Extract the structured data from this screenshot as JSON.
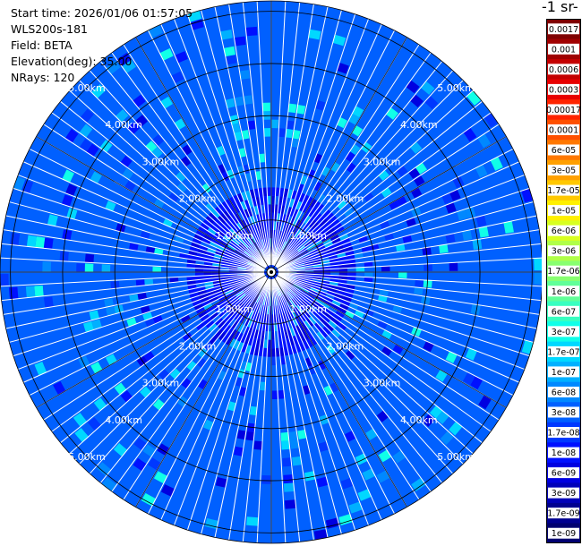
{
  "info": {
    "start_time": "Start time: 2026/01/06 01:57:05",
    "instrument": "WLS200s-181",
    "field": "Field: BETA",
    "elevation": "Elevation(deg): 35.00",
    "nrays": "NRays: 120"
  },
  "colorbar": {
    "title": "-1 sr-",
    "labels": [
      "0.0017",
      "0.001",
      "0.0006",
      "0.0003",
      "0.00017",
      "0.0001",
      "6e-05",
      "3e-05",
      "1.7e-05",
      "1e-05",
      "6e-06",
      "3e-06",
      "1.7e-06",
      "1e-06",
      "6e-07",
      "3e-07",
      "1.7e-07",
      "1e-07",
      "6e-08",
      "3e-08",
      "1.7e-08",
      "1e-08",
      "6e-09",
      "3e-09",
      "1.7e-09",
      "1e-09"
    ],
    "colors": [
      "#800000",
      "#a00000",
      "#c40000",
      "#e80000",
      "#ff2400",
      "#ff5000",
      "#ff7800",
      "#ffa000",
      "#ffc800",
      "#fff000",
      "#d8ff20",
      "#b0ff48",
      "#88ff70",
      "#60ff98",
      "#38ffc0",
      "#10ffe8",
      "#00d8ff",
      "#00b0ff",
      "#0088ff",
      "#0060ff",
      "#0038ff",
      "#0010ff",
      "#0000e0",
      "#0000b8",
      "#000090",
      "#000070"
    ]
  },
  "chart_data": {
    "type": "heatmap",
    "subtype": "polar PPI scan",
    "field": "BETA",
    "elevation_deg": 35.0,
    "n_rays": 120,
    "range_rings_km": [
      1,
      2,
      3,
      4,
      5
    ],
    "ring_labels": [
      "1.00km",
      "2.00km",
      "3.00km",
      "4.00km",
      "5.00km"
    ],
    "max_range_km": 5.0,
    "color_scale": "log",
    "value_range": [
      1e-09,
      0.0017
    ],
    "dominant_value": 3e-08,
    "near_field_value": 1e-08,
    "enhanced_patches_value": 1.7e-07
  }
}
